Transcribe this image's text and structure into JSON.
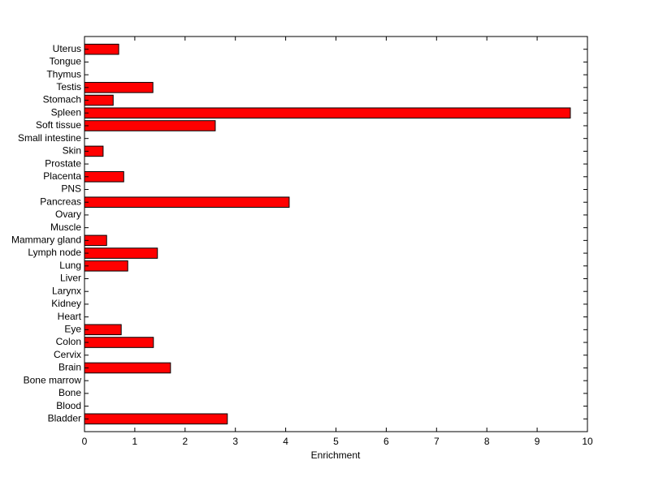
{
  "chart_data": {
    "type": "barh",
    "xlabel": "Enrichment",
    "categories": [
      "Bladder",
      "Blood",
      "Bone",
      "Bone marrow",
      "Brain",
      "Cervix",
      "Colon",
      "Eye",
      "Heart",
      "Kidney",
      "Larynx",
      "Liver",
      "Lung",
      "Lymph node",
      "Mammary gland",
      "Muscle",
      "Ovary",
      "Pancreas",
      "PNS",
      "Placenta",
      "Prostate",
      "Skin",
      "Small intestine",
      "Soft tissue",
      "Spleen",
      "Stomach",
      "Testis",
      "Thymus",
      "Tongue",
      "Uterus"
    ],
    "values": [
      2.84,
      0,
      0,
      0,
      1.71,
      0,
      1.37,
      0.73,
      0,
      0,
      0,
      0,
      0.86,
      1.45,
      0.44,
      0,
      0,
      4.07,
      0,
      0.78,
      0,
      0.37,
      0,
      2.6,
      9.66,
      0.57,
      1.36,
      0,
      0,
      0.68
    ],
    "color": "#ff0000",
    "xlim": [
      0,
      10
    ],
    "xticks": [
      0,
      1,
      2,
      3,
      4,
      5,
      6,
      7,
      8,
      9,
      10
    ]
  }
}
